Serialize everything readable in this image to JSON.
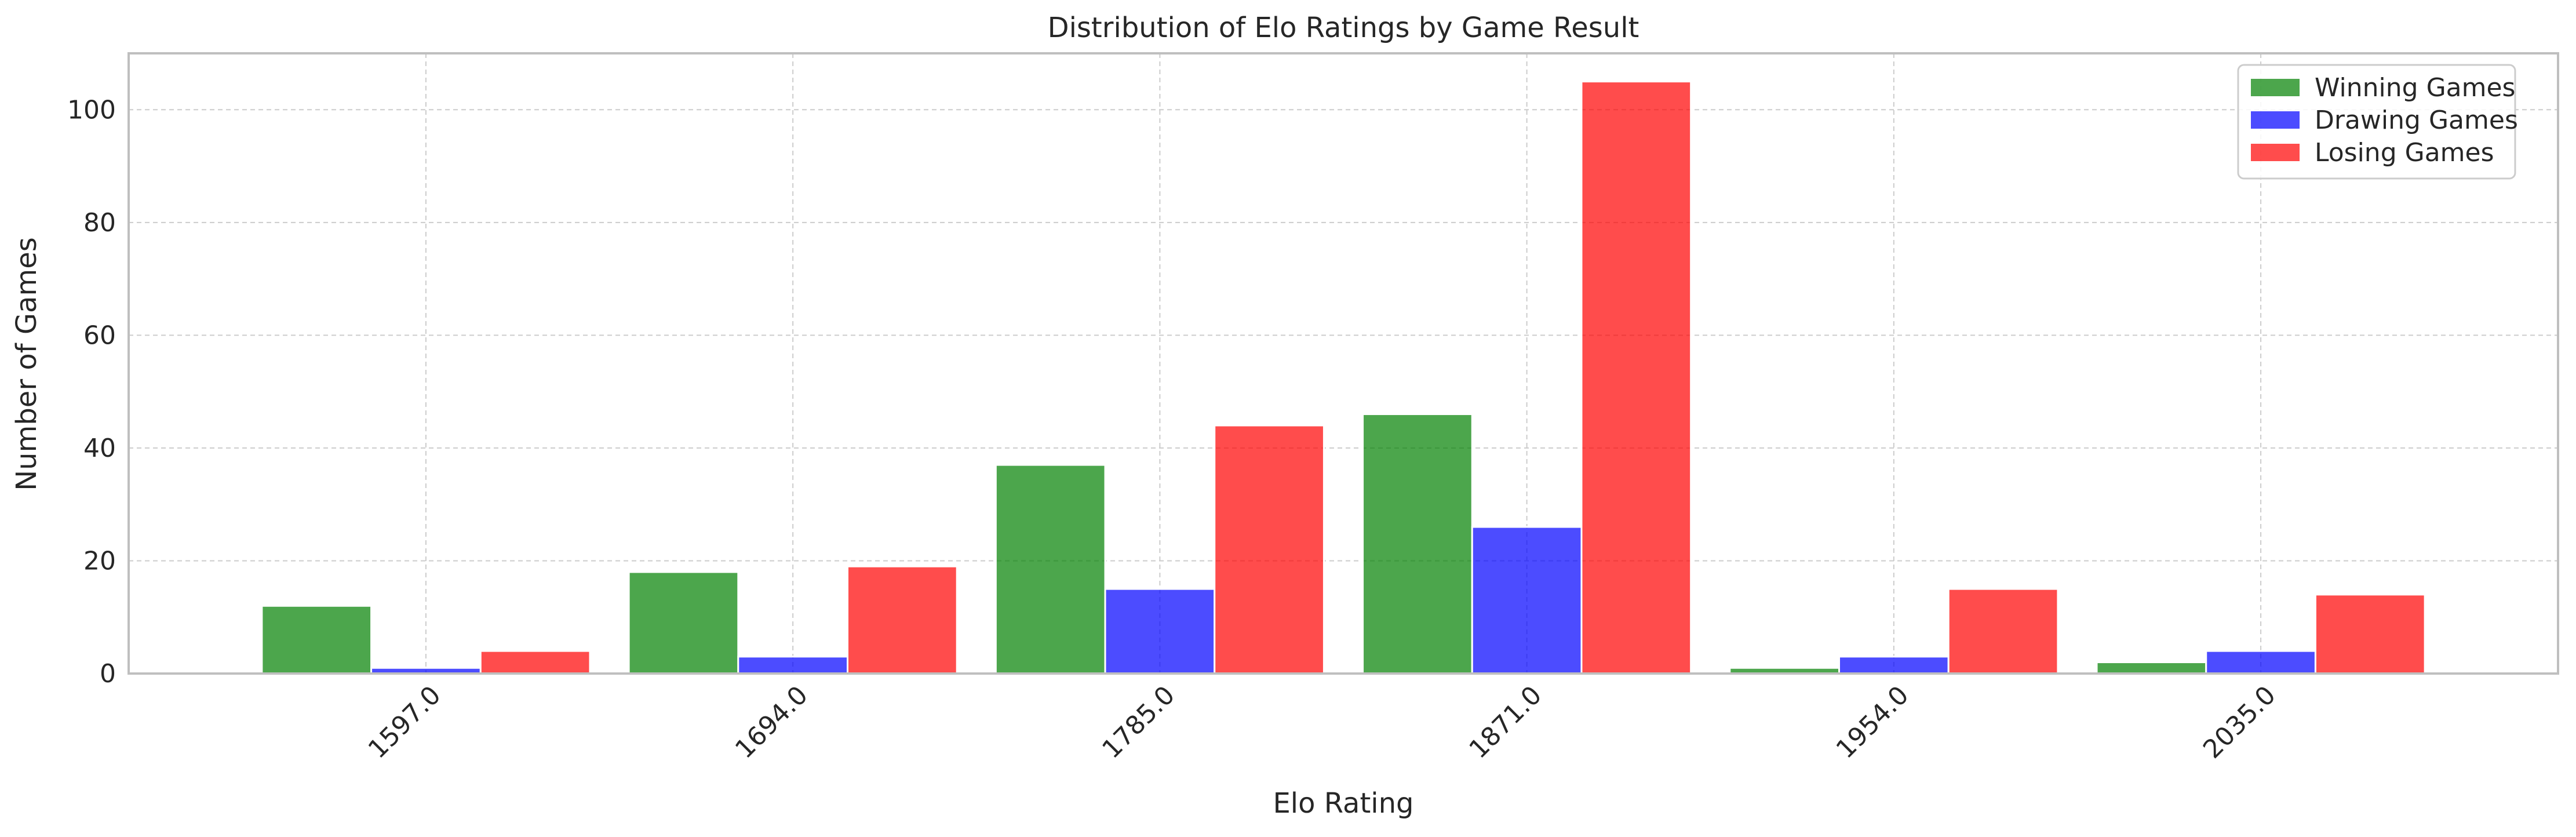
{
  "chart_data": {
    "type": "bar",
    "title": "Distribution of Elo Ratings by Game Result",
    "xlabel": "Elo Rating",
    "ylabel": "Number of Games",
    "categories": [
      "1597.0",
      "1694.0",
      "1785.0",
      "1871.0",
      "1954.0",
      "2035.0"
    ],
    "series": [
      {
        "name": "Winning Games",
        "color": "#008000",
        "values": [
          12,
          18,
          37,
          46,
          1,
          2
        ]
      },
      {
        "name": "Drawing Games",
        "color": "#0000ff",
        "values": [
          1,
          3,
          15,
          26,
          3,
          4
        ]
      },
      {
        "name": "Losing Games",
        "color": "#ff0000",
        "values": [
          4,
          19,
          44,
          105,
          15,
          14
        ]
      }
    ],
    "ylim": [
      0,
      110
    ],
    "yticks": [
      0,
      20,
      40,
      60,
      80,
      100
    ],
    "grid": true,
    "legend_position": "top-right"
  }
}
